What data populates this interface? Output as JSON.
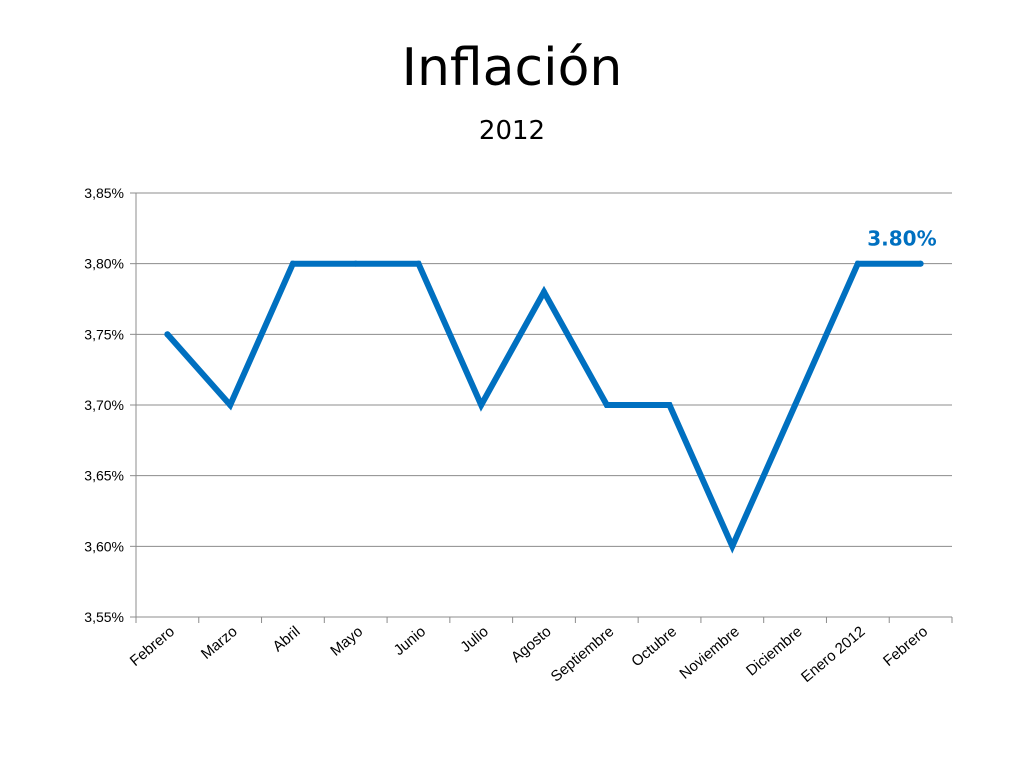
{
  "slide": {
    "title": "Inflación",
    "subtitle": "2012"
  },
  "chart_data": {
    "type": "line",
    "title": "",
    "xlabel": "",
    "ylabel": "",
    "categories": [
      "Febrero",
      "Marzo",
      "Abril",
      "Mayo",
      "Junio",
      "Julio",
      "Agosto",
      "Septiembre",
      "Octubre",
      "Noviembre",
      "Diciembre",
      "Enero 2012",
      "Febrero"
    ],
    "series": [
      {
        "values": [
          3.75,
          3.7,
          3.8,
          3.8,
          3.8,
          3.7,
          3.78,
          3.7,
          3.7,
          3.6,
          3.7,
          3.8,
          3.8
        ]
      }
    ],
    "ylim": [
      3.55,
      3.85
    ],
    "y_ticks": [
      3.55,
      3.6,
      3.65,
      3.7,
      3.75,
      3.8,
      3.85
    ],
    "y_tick_labels": [
      "3,55%",
      "3,60%",
      "3,65%",
      "3,70%",
      "3,75%",
      "3,80%",
      "3,85%"
    ],
    "grid": "horizontal",
    "legend": "none",
    "line_color": "#0070C0",
    "data_label": {
      "index": 12,
      "text": "3.80%",
      "color": "#0070C0"
    }
  }
}
